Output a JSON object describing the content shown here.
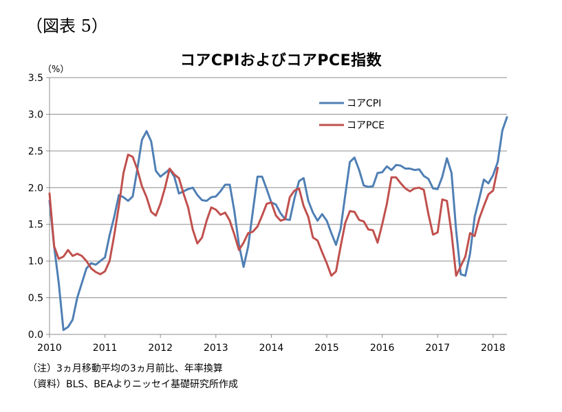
{
  "figure_label": "（図表 5）",
  "notes": {
    "note": "（注）3ヵ月移動平均の3ヵ月前比、年率換算",
    "source": "（資料）BLS、BEAよりニッセイ基礎研究所作成"
  },
  "chart_data": {
    "type": "line",
    "title": "コアCPIおよびコアPCE指数",
    "ylabel": "（%）",
    "xlabel": "",
    "ylim": [
      0,
      3.5
    ],
    "yticks": [
      "0.0",
      "0.5",
      "1.0",
      "1.5",
      "2.0",
      "2.5",
      "3.0",
      "3.5"
    ],
    "xlim": [
      2010,
      2018.25
    ],
    "xticks": [
      "2010",
      "2011",
      "2012",
      "2013",
      "2014",
      "2015",
      "2016",
      "2017",
      "2018"
    ],
    "grid": "horizontal",
    "legend_position": "top-right",
    "x_start": "2010-01",
    "x_step": "monthly",
    "series": [
      {
        "name": "コアCPI",
        "color": "#4f7fb4",
        "values": [
          1.82,
          1.2,
          0.7,
          0.06,
          0.1,
          0.2,
          0.5,
          0.7,
          0.9,
          0.97,
          0.95,
          1.0,
          1.05,
          1.35,
          1.6,
          1.9,
          1.87,
          1.82,
          1.88,
          2.25,
          2.65,
          2.77,
          2.63,
          2.23,
          2.15,
          2.2,
          2.25,
          2.15,
          1.92,
          1.95,
          1.98,
          2.0,
          1.9,
          1.83,
          1.82,
          1.87,
          1.88,
          1.95,
          2.04,
          2.04,
          1.68,
          1.22,
          0.92,
          1.2,
          1.68,
          2.15,
          2.15,
          1.98,
          1.8,
          1.77,
          1.65,
          1.57,
          1.56,
          1.85,
          2.09,
          2.13,
          1.82,
          1.66,
          1.55,
          1.64,
          1.55,
          1.38,
          1.22,
          1.44,
          1.9,
          2.35,
          2.41,
          2.24,
          2.03,
          2.01,
          2.02,
          2.2,
          2.21,
          2.29,
          2.24,
          2.31,
          2.3,
          2.26,
          2.26,
          2.24,
          2.25,
          2.16,
          2.12,
          1.99,
          1.98,
          2.15,
          2.4,
          2.2,
          1.42,
          0.82,
          0.8,
          1.1,
          1.6,
          1.85,
          2.11,
          2.06,
          2.17,
          2.35,
          2.78,
          2.96
        ]
      },
      {
        "name": "コアPCE",
        "color": "#c0504d",
        "values": [
          1.92,
          1.2,
          1.03,
          1.06,
          1.15,
          1.07,
          1.1,
          1.07,
          1.0,
          0.9,
          0.85,
          0.82,
          0.86,
          1.0,
          1.35,
          1.75,
          2.2,
          2.45,
          2.42,
          2.25,
          2.02,
          1.87,
          1.67,
          1.62,
          1.78,
          2.0,
          2.26,
          2.18,
          2.13,
          1.92,
          1.73,
          1.43,
          1.24,
          1.32,
          1.55,
          1.73,
          1.7,
          1.63,
          1.66,
          1.55,
          1.36,
          1.15,
          1.25,
          1.38,
          1.4,
          1.47,
          1.62,
          1.78,
          1.8,
          1.62,
          1.55,
          1.57,
          1.87,
          1.96,
          1.99,
          1.75,
          1.6,
          1.32,
          1.28,
          1.12,
          0.97,
          0.8,
          0.86,
          1.2,
          1.52,
          1.68,
          1.67,
          1.56,
          1.54,
          1.43,
          1.42,
          1.25,
          1.5,
          1.78,
          2.14,
          2.14,
          2.06,
          1.99,
          1.95,
          1.99,
          2.0,
          1.97,
          1.64,
          1.36,
          1.39,
          1.84,
          1.82,
          1.38,
          0.8,
          0.93,
          1.06,
          1.38,
          1.34,
          1.58,
          1.75,
          1.91,
          1.96,
          2.27
        ]
      }
    ]
  }
}
